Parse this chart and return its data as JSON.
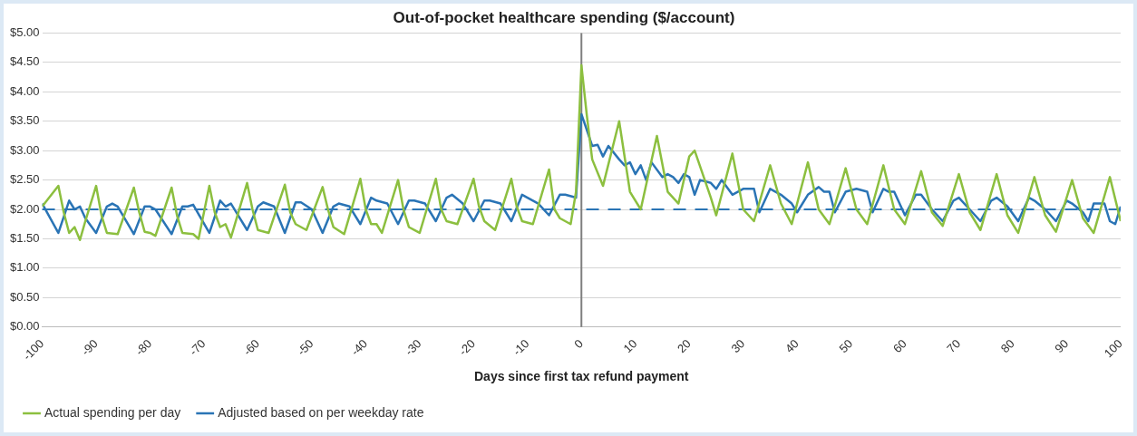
{
  "chart_data": {
    "type": "line",
    "title": "Out-of-pocket healthcare spending ($/account)",
    "xlabel": "Days since first tax refund payment",
    "xlim": [
      -100,
      100
    ],
    "xticks": [
      -100,
      -90,
      -80,
      -70,
      -60,
      -50,
      -40,
      -30,
      -20,
      -10,
      0,
      10,
      20,
      30,
      40,
      50,
      60,
      70,
      80,
      90,
      100
    ],
    "ylim": [
      0,
      5
    ],
    "yticks": [
      {
        "value": 0,
        "label": "$0.00"
      },
      {
        "value": 0.5,
        "label": "$0.50"
      },
      {
        "value": 1,
        "label": "$1.00"
      },
      {
        "value": 1.5,
        "label": "$1.50"
      },
      {
        "value": 2,
        "label": "$2.00"
      },
      {
        "value": 2.5,
        "label": "$2.50"
      },
      {
        "value": 3,
        "label": "$3.00"
      },
      {
        "value": 3.5,
        "label": "$3.50"
      },
      {
        "value": 4,
        "label": "$4.00"
      },
      {
        "value": 4.5,
        "label": "$4.50"
      },
      {
        "value": 5,
        "label": "$5.00"
      }
    ],
    "grid": "y",
    "legend": "bottom left",
    "marker": "none",
    "line_style": "solid",
    "ref_lines": [
      {
        "axis": "x",
        "value": 0,
        "color": "#7f7f7f",
        "line_style": "solid"
      },
      {
        "axis": "y",
        "value": 2,
        "color": "#2a74b5",
        "line_style": "dashed"
      }
    ],
    "series": [
      {
        "name": "Actual spending per day",
        "color": "#8cbf3f",
        "x": [
          -100,
          -97,
          -96,
          -95,
          -94,
          -93,
          -92,
          -90,
          -89,
          -88,
          -86,
          -83,
          -82,
          -81,
          -80,
          -79,
          -76,
          -75,
          -74,
          -72,
          -71,
          -69,
          -68,
          -67,
          -66,
          -65,
          -62,
          -61,
          -60,
          -58,
          -55,
          -54,
          -53,
          -51,
          -48,
          -47,
          -46,
          -44,
          -41,
          -40,
          -39,
          -38,
          -37,
          -34,
          -33,
          -32,
          -30,
          -27,
          -26,
          -25,
          -23,
          -20,
          -19,
          -18,
          -16,
          -13,
          -12,
          -11,
          -9,
          -6,
          -5,
          -4,
          -2,
          -1,
          0,
          1,
          2,
          4,
          7,
          9,
          11,
          14,
          16,
          18,
          20,
          21,
          24,
          25,
          28,
          30,
          32,
          35,
          37,
          39,
          42,
          44,
          46,
          49,
          51,
          53,
          56,
          58,
          60,
          63,
          65,
          67,
          70,
          72,
          74,
          77,
          79,
          81,
          84,
          86,
          88,
          91,
          93,
          95,
          98,
          100
        ],
        "values": [
          2.05,
          2.4,
          1.95,
          1.6,
          1.7,
          1.48,
          1.8,
          2.4,
          1.9,
          1.6,
          1.58,
          2.37,
          1.95,
          1.62,
          1.6,
          1.55,
          2.37,
          1.9,
          1.6,
          1.58,
          1.5,
          2.4,
          1.95,
          1.7,
          1.75,
          1.52,
          2.45,
          2.0,
          1.65,
          1.6,
          2.42,
          1.95,
          1.75,
          1.65,
          2.38,
          2.0,
          1.7,
          1.58,
          2.52,
          2.0,
          1.75,
          1.75,
          1.6,
          2.5,
          2.0,
          1.7,
          1.6,
          2.52,
          2.0,
          1.8,
          1.75,
          2.52,
          2.05,
          1.8,
          1.65,
          2.52,
          2.05,
          1.8,
          1.75,
          2.68,
          2.0,
          1.85,
          1.75,
          2.3,
          4.45,
          3.6,
          2.85,
          2.4,
          3.5,
          2.3,
          2.0,
          3.25,
          2.3,
          2.1,
          2.9,
          3.0,
          2.2,
          1.9,
          2.95,
          2.0,
          1.8,
          2.75,
          2.1,
          1.75,
          2.8,
          2.0,
          1.75,
          2.7,
          2.0,
          1.75,
          2.75,
          2.0,
          1.75,
          2.65,
          1.95,
          1.72,
          2.6,
          1.95,
          1.65,
          2.6,
          1.9,
          1.6,
          2.55,
          1.9,
          1.62,
          2.5,
          1.85,
          1.6,
          2.55,
          1.8
        ]
      },
      {
        "name": "Adjusted based on per weekday rate",
        "color": "#2a74b5",
        "x": [
          -100,
          -97,
          -95,
          -94,
          -93,
          -92,
          -90,
          -88,
          -87,
          -86,
          -83,
          -81,
          -80,
          -79,
          -76,
          -74,
          -73,
          -72,
          -69,
          -67,
          -66,
          -65,
          -62,
          -60,
          -59,
          -57,
          -55,
          -53,
          -52,
          -50,
          -48,
          -46,
          -45,
          -43,
          -41,
          -39,
          -38,
          -36,
          -34,
          -32,
          -31,
          -29,
          -27,
          -25,
          -24,
          -22,
          -20,
          -18,
          -17,
          -15,
          -13,
          -11,
          -10,
          -8,
          -6,
          -4,
          -3,
          -1,
          0,
          2,
          3,
          4,
          5,
          7,
          8,
          9,
          10,
          11,
          12,
          13,
          15,
          16,
          17,
          18,
          19,
          20,
          21,
          22,
          24,
          25,
          26,
          28,
          30,
          32,
          33,
          35,
          37,
          39,
          40,
          42,
          44,
          45,
          46,
          47,
          49,
          51,
          53,
          54,
          56,
          57,
          58,
          60,
          62,
          63,
          65,
          67,
          69,
          70,
          72,
          74,
          76,
          77,
          79,
          81,
          83,
          84,
          86,
          88,
          90,
          91,
          93,
          94,
          95,
          97,
          98,
          99,
          100
        ],
        "values": [
          2.1,
          1.6,
          2.15,
          2.0,
          2.05,
          1.85,
          1.6,
          2.05,
          2.1,
          2.05,
          1.58,
          2.05,
          2.05,
          2.0,
          1.58,
          2.05,
          2.05,
          2.08,
          1.6,
          2.15,
          2.05,
          2.1,
          1.65,
          2.05,
          2.12,
          2.05,
          1.6,
          2.12,
          2.12,
          2.0,
          1.6,
          2.05,
          2.1,
          2.05,
          1.75,
          2.2,
          2.15,
          2.1,
          1.75,
          2.15,
          2.15,
          2.1,
          1.8,
          2.2,
          2.25,
          2.1,
          1.8,
          2.15,
          2.15,
          2.1,
          1.8,
          2.25,
          2.2,
          2.1,
          1.9,
          2.25,
          2.25,
          2.2,
          3.62,
          3.08,
          3.1,
          2.9,
          3.08,
          2.85,
          2.75,
          2.8,
          2.6,
          2.75,
          2.5,
          2.8,
          2.55,
          2.6,
          2.55,
          2.45,
          2.6,
          2.55,
          2.25,
          2.5,
          2.45,
          2.35,
          2.5,
          2.25,
          2.35,
          2.35,
          1.95,
          2.35,
          2.25,
          2.1,
          1.95,
          2.25,
          2.38,
          2.3,
          2.3,
          1.95,
          2.3,
          2.35,
          2.3,
          1.95,
          2.35,
          2.3,
          2.3,
          1.9,
          2.25,
          2.25,
          2.0,
          1.8,
          2.15,
          2.2,
          2.0,
          1.8,
          2.15,
          2.2,
          2.05,
          1.8,
          2.2,
          2.15,
          2.0,
          1.8,
          2.15,
          2.1,
          1.95,
          1.8,
          2.1,
          2.1,
          1.8,
          1.75,
          2.05
        ]
      }
    ]
  }
}
